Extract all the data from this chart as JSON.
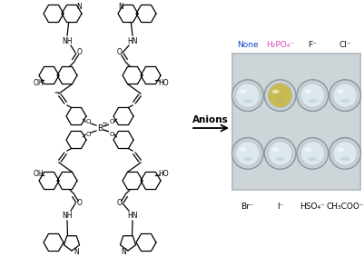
{
  "fig_width": 4.01,
  "fig_height": 2.83,
  "dpi": 100,
  "bg_color": "#ffffff",
  "arrow_text": "Anions",
  "top_labels": [
    "None",
    "H₂PO₄⁻",
    "F⁻",
    "Cl⁻"
  ],
  "top_label_colors": [
    "#1144cc",
    "#dd44bb",
    "#111111",
    "#111111"
  ],
  "bottom_labels": [
    "Br⁻",
    "I⁻",
    "HSO₄⁻",
    "CH₃COO⁻"
  ],
  "vial_color_normal": "#dde8ec",
  "vial_color_phosphate": "#c8ba50",
  "photo_bg_top": "#c0c8cc",
  "photo_bg_bottom": "#a8b0b4"
}
